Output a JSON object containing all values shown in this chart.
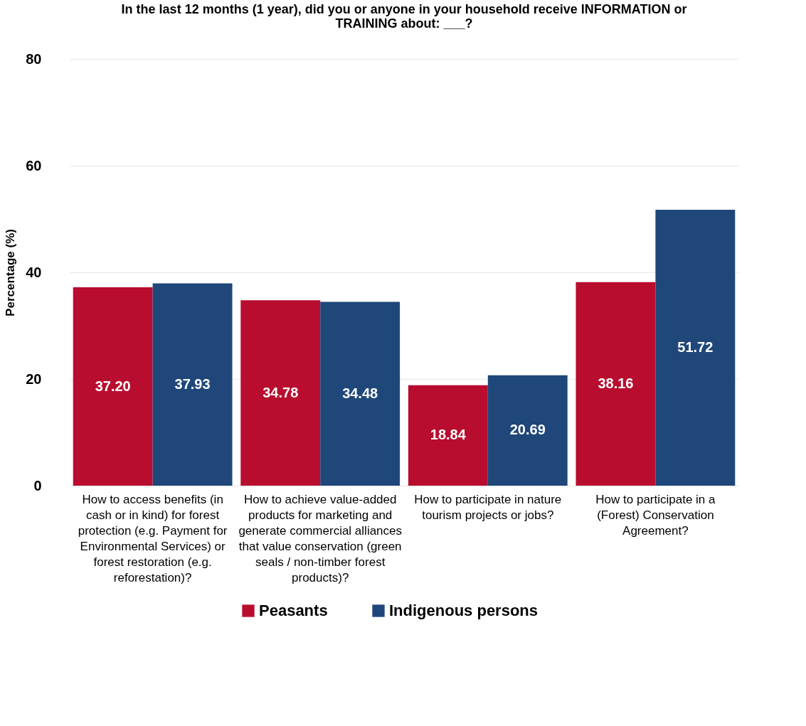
{
  "chart_data": {
    "type": "bar",
    "title": "In the last 12 months (1 year), did you or anyone in your household receive INFORMATION or TRAINING about: ___?",
    "ylabel": "Percentage (%)",
    "categories": [
      "How to access benefits (in cash or in kind) for forest protection (e.g. Payment for Environmental Services) or forest restoration (e.g. reforestation)?",
      "How to achieve value-added products for marketing and generate commercial alliances that value conservation (green seals / non-timber forest products)?",
      "How to participate in nature tourism projects or jobs?",
      "How to participate in a (Forest) Conservation Agreement?"
    ],
    "series": [
      {
        "name": "Peasants",
        "color": "#b80d2e",
        "values": [
          37.2,
          34.78,
          18.84,
          38.16
        ],
        "value_labels": [
          "37.20",
          "34.78",
          "18.84",
          "38.16"
        ]
      },
      {
        "name": "Indigenous persons",
        "color": "#1f477a",
        "values": [
          37.93,
          34.48,
          20.69,
          51.72
        ],
        "value_labels": [
          "37.93",
          "34.48",
          "20.69",
          "51.72"
        ]
      }
    ],
    "ylim": [
      0,
      80
    ],
    "yticks": [
      0,
      20,
      40,
      60,
      80
    ],
    "grid": "y",
    "legend": "bottom"
  }
}
